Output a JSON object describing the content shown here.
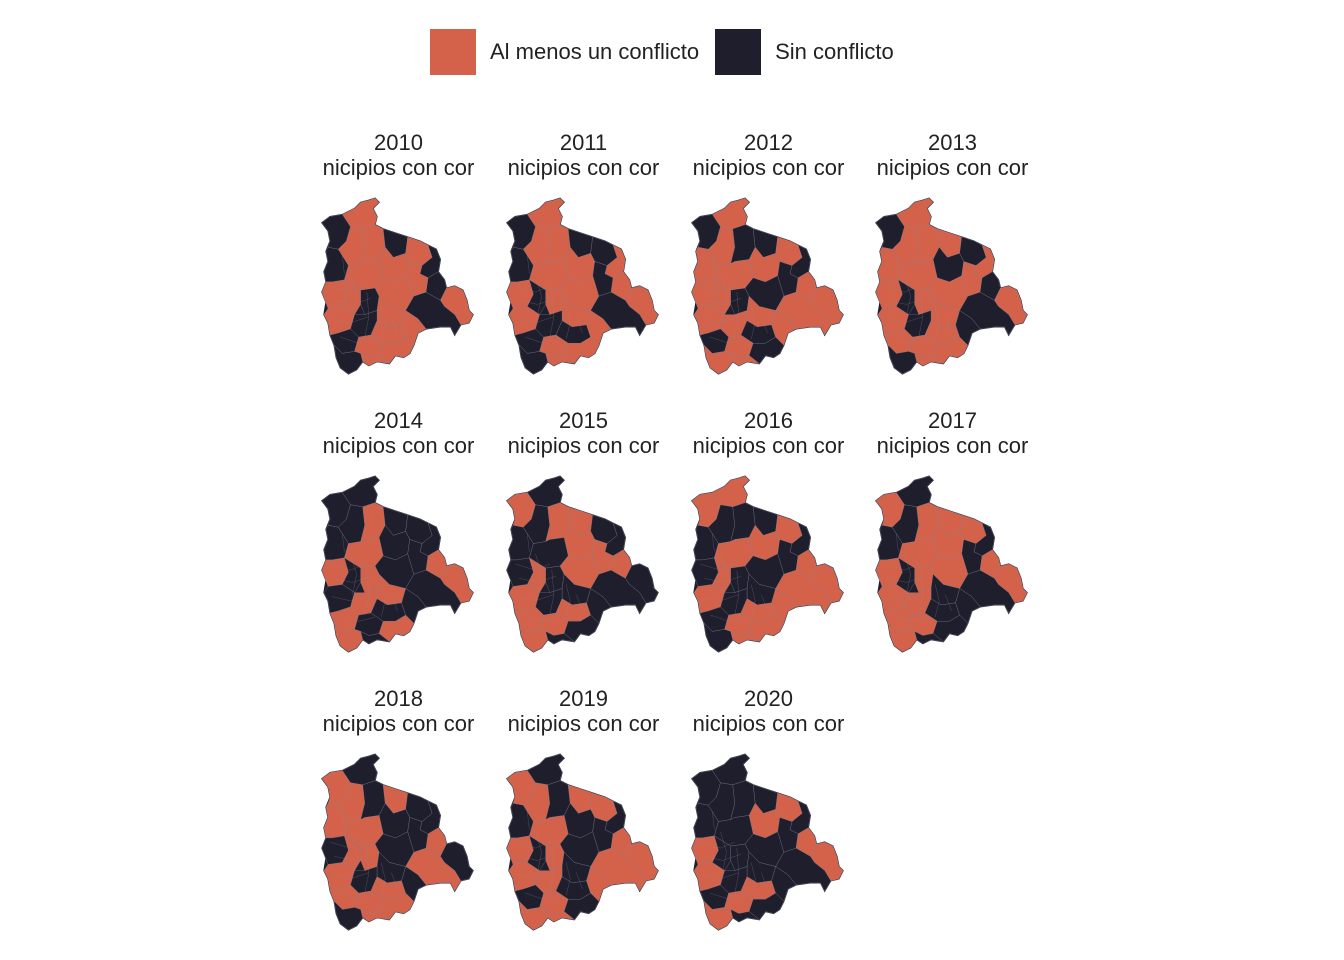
{
  "legend": {
    "items": [
      {
        "label": "Al menos un conflicto",
        "color": "#d4624a"
      },
      {
        "label": "Sin conflicto",
        "color": "#1e1e2d"
      }
    ]
  },
  "panel_subtitle": "nicipios con cor",
  "panels": [
    {
      "year": "2010"
    },
    {
      "year": "2011"
    },
    {
      "year": "2012"
    },
    {
      "year": "2013"
    },
    {
      "year": "2014"
    },
    {
      "year": "2015"
    },
    {
      "year": "2016"
    },
    {
      "year": "2017"
    },
    {
      "year": "2018"
    },
    {
      "year": "2019"
    },
    {
      "year": "2020"
    }
  ],
  "colors": {
    "conflict": "#d4624a",
    "no_conflict": "#1e1e2d",
    "border": "#8a8a9a"
  }
}
